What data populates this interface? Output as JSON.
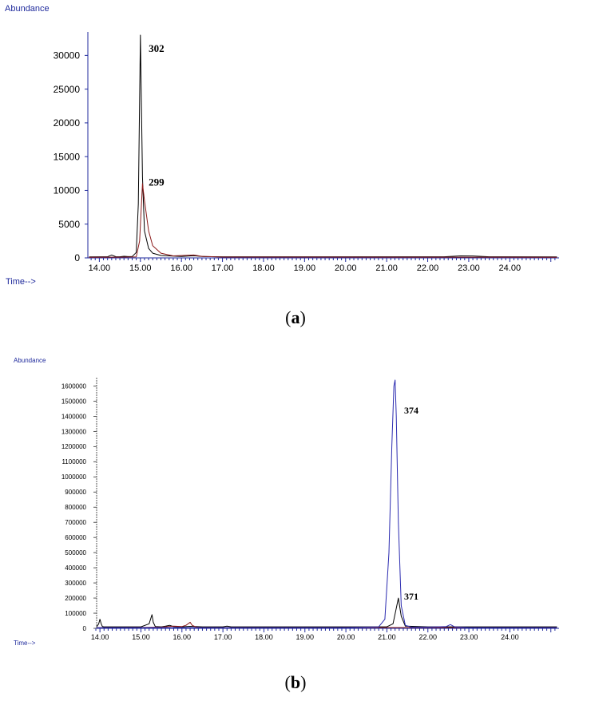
{
  "colors": {
    "axis_text": "#1f2a9c",
    "black_trace": "#000000",
    "red_trace": "#8b1a1a",
    "blue_trace": "#2b2bb0"
  },
  "chart_data": [
    {
      "type": "line",
      "panel_label": "a",
      "ylabel": "Abundance",
      "xlabel": "Time-->",
      "xlim": [
        13.72,
        25.2
      ],
      "ylim": [
        0,
        33000
      ],
      "x_ticks": [
        "14.00",
        "15.00",
        "16.00",
        "17.00",
        "18.00",
        "19.00",
        "20.00",
        "21.00",
        "22.00",
        "23.00",
        "24.00"
      ],
      "y_ticks": [
        "0",
        "5000",
        "10000",
        "15000",
        "20000",
        "25000",
        "30000"
      ],
      "series": [
        {
          "color": "#000000",
          "x": [
            13.75,
            14.2,
            14.3,
            14.4,
            14.5,
            14.6,
            14.7,
            14.8,
            14.9,
            14.95,
            15.0,
            15.05,
            15.1,
            15.2,
            15.3,
            15.5,
            16.0,
            16.3,
            16.5,
            17.0,
            20.0,
            22.4,
            22.8,
            23.1,
            23.5,
            25.15
          ],
          "y": [
            150,
            160,
            420,
            180,
            170,
            240,
            190,
            200,
            800,
            8000,
            33000,
            12000,
            4000,
            1400,
            700,
            350,
            200,
            320,
            200,
            170,
            160,
            160,
            300,
            280,
            160,
            150
          ]
        },
        {
          "color": "#8b1a1a",
          "x": [
            13.75,
            14.5,
            14.9,
            14.98,
            15.05,
            15.1,
            15.2,
            15.3,
            15.5,
            15.8,
            16.3,
            16.5,
            17.0,
            25.15
          ],
          "y": [
            100,
            110,
            150,
            2500,
            11000,
            8500,
            4000,
            1800,
            700,
            300,
            420,
            220,
            120,
            100
          ]
        }
      ],
      "annotations": [
        {
          "text": "302",
          "x": 15.2,
          "y": 31000
        },
        {
          "text": "299",
          "x": 15.2,
          "y": 11200
        }
      ]
    },
    {
      "type": "line",
      "panel_label": "b",
      "ylabel": "Abundance",
      "xlabel": "Time-->",
      "xlim": [
        13.9,
        25.2
      ],
      "ylim": [
        0,
        1640000
      ],
      "x_ticks": [
        "14.00",
        "15.00",
        "16.00",
        "17.00",
        "18.00",
        "19.00",
        "20.00",
        "21.00",
        "22.00",
        "23.00",
        "24.00"
      ],
      "y_ticks": [
        "0",
        "100000",
        "200000",
        "300000",
        "400000",
        "500000",
        "600000",
        "700000",
        "800000",
        "900000",
        "1000000",
        "1100000",
        "1200000",
        "1300000",
        "1400000",
        "1500000",
        "1600000"
      ],
      "series": [
        {
          "color": "#000000",
          "x": [
            13.92,
            13.97,
            14.0,
            14.03,
            14.06,
            14.1,
            15.0,
            15.2,
            15.27,
            15.3,
            15.35,
            15.5,
            15.6,
            15.7,
            15.8,
            16.0,
            16.2,
            16.5,
            17.0,
            17.1,
            17.2,
            21.0,
            21.15,
            21.22,
            21.28,
            21.35,
            21.45,
            22.0,
            25.15
          ],
          "y": [
            10000,
            30000,
            60000,
            30000,
            12000,
            10000,
            10000,
            30000,
            90000,
            40000,
            12000,
            10000,
            14000,
            20000,
            11000,
            10000,
            13000,
            10000,
            10000,
            14000,
            10000,
            10000,
            30000,
            120000,
            200000,
            80000,
            15000,
            10000,
            10000
          ]
        },
        {
          "color": "#8b1a1a",
          "x": [
            13.92,
            15.0,
            15.5,
            15.8,
            16.0,
            16.1,
            16.2,
            16.25,
            16.35,
            16.5,
            17.0,
            19.8,
            20.0,
            25.15
          ],
          "y": [
            5000,
            6000,
            8000,
            15000,
            12000,
            20000,
            40000,
            20000,
            8000,
            5000,
            5000,
            5000,
            6000,
            5000
          ]
        },
        {
          "color": "#2b2bb0",
          "x": [
            13.92,
            20.0,
            20.8,
            20.95,
            21.05,
            21.12,
            21.17,
            21.2,
            21.23,
            21.28,
            21.35,
            21.45,
            21.6,
            22.0,
            22.45,
            22.55,
            22.65,
            23.0,
            25.15
          ],
          "y": [
            5000,
            5000,
            10000,
            60000,
            500000,
            1200000,
            1600000,
            1640000,
            1400000,
            700000,
            150000,
            20000,
            8000,
            8000,
            12000,
            25000,
            10000,
            5000,
            5000
          ]
        }
      ],
      "annotations": [
        {
          "text": "374",
          "x": 21.42,
          "y": 1440000
        },
        {
          "text": "371",
          "x": 21.42,
          "y": 210000
        }
      ]
    }
  ]
}
